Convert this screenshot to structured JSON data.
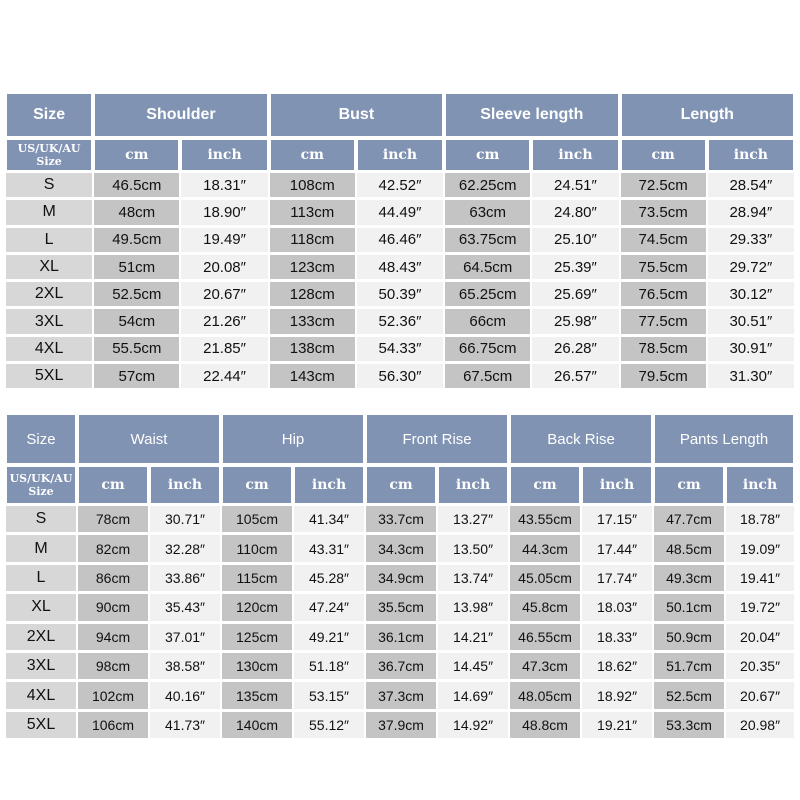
{
  "table_top": {
    "size_header": "Size",
    "sub_size_label_line1": "US/UK/AU",
    "sub_size_label_line2": "Size",
    "cm": "cm",
    "inch": "inch",
    "columns": [
      "Shoulder",
      "Bust",
      "Sleeve length",
      "Length"
    ],
    "rows": [
      {
        "size": "S",
        "cells": [
          "46.5cm",
          "18.31″",
          "108cm",
          "42.52″",
          "62.25cm",
          "24.51″",
          "72.5cm",
          "28.54″"
        ]
      },
      {
        "size": "M",
        "cells": [
          "48cm",
          "18.90″",
          "113cm",
          "44.49″",
          "63cm",
          "24.80″",
          "73.5cm",
          "28.94″"
        ]
      },
      {
        "size": "L",
        "cells": [
          "49.5cm",
          "19.49″",
          "118cm",
          "46.46″",
          "63.75cm",
          "25.10″",
          "74.5cm",
          "29.33″"
        ]
      },
      {
        "size": "XL",
        "cells": [
          "51cm",
          "20.08″",
          "123cm",
          "48.43″",
          "64.5cm",
          "25.39″",
          "75.5cm",
          "29.72″"
        ]
      },
      {
        "size": "2XL",
        "cells": [
          "52.5cm",
          "20.67″",
          "128cm",
          "50.39″",
          "65.25cm",
          "25.69″",
          "76.5cm",
          "30.12″"
        ]
      },
      {
        "size": "3XL",
        "cells": [
          "54cm",
          "21.26″",
          "133cm",
          "52.36″",
          "66cm",
          "25.98″",
          "77.5cm",
          "30.51″"
        ]
      },
      {
        "size": "4XL",
        "cells": [
          "55.5cm",
          "21.85″",
          "138cm",
          "54.33″",
          "66.75cm",
          "26.28″",
          "78.5cm",
          "30.91″"
        ]
      },
      {
        "size": "5XL",
        "cells": [
          "57cm",
          "22.44″",
          "143cm",
          "56.30″",
          "67.5cm",
          "26.57″",
          "79.5cm",
          "31.30″"
        ]
      }
    ]
  },
  "table_bottom": {
    "size_header": "Size",
    "sub_size_label_line1": "US/UK/AU",
    "sub_size_label_line2": "Size",
    "cm": "cm",
    "inch": "inch",
    "columns": [
      "Waist",
      "Hip",
      "Front Rise",
      "Back Rise",
      "Pants Length"
    ],
    "rows": [
      {
        "size": "S",
        "cells": [
          "78cm",
          "30.71″",
          "105cm",
          "41.34″",
          "33.7cm",
          "13.27″",
          "43.55cm",
          "17.15″",
          "47.7cm",
          "18.78″"
        ]
      },
      {
        "size": "M",
        "cells": [
          "82cm",
          "32.28″",
          "110cm",
          "43.31″",
          "34.3cm",
          "13.50″",
          "44.3cm",
          "17.44″",
          "48.5cm",
          "19.09″"
        ]
      },
      {
        "size": "L",
        "cells": [
          "86cm",
          "33.86″",
          "115cm",
          "45.28″",
          "34.9cm",
          "13.74″",
          "45.05cm",
          "17.74″",
          "49.3cm",
          "19.41″"
        ]
      },
      {
        "size": "XL",
        "cells": [
          "90cm",
          "35.43″",
          "120cm",
          "47.24″",
          "35.5cm",
          "13.98″",
          "45.8cm",
          "18.03″",
          "50.1cm",
          "19.72″"
        ]
      },
      {
        "size": "2XL",
        "cells": [
          "94cm",
          "37.01″",
          "125cm",
          "49.21″",
          "36.1cm",
          "14.21″",
          "46.55cm",
          "18.33″",
          "50.9cm",
          "20.04″"
        ]
      },
      {
        "size": "3XL",
        "cells": [
          "98cm",
          "38.58″",
          "130cm",
          "51.18″",
          "36.7cm",
          "14.45″",
          "47.3cm",
          "18.62″",
          "51.7cm",
          "20.35″"
        ]
      },
      {
        "size": "4XL",
        "cells": [
          "102cm",
          "40.16″",
          "135cm",
          "53.15″",
          "37.3cm",
          "14.69″",
          "48.05cm",
          "18.92″",
          "52.5cm",
          "20.67″"
        ]
      },
      {
        "size": "5XL",
        "cells": [
          "106cm",
          "41.73″",
          "140cm",
          "55.12″",
          "37.9cm",
          "14.92″",
          "48.8cm",
          "19.21″",
          "53.3cm",
          "20.98″"
        ]
      }
    ]
  },
  "colors": {
    "header_blue": "#8093b3",
    "size_cell_gray": "#d7d7d7",
    "cm_cell_gray": "#c4c4c4",
    "inch_cell_light": "#f1f1f1"
  }
}
